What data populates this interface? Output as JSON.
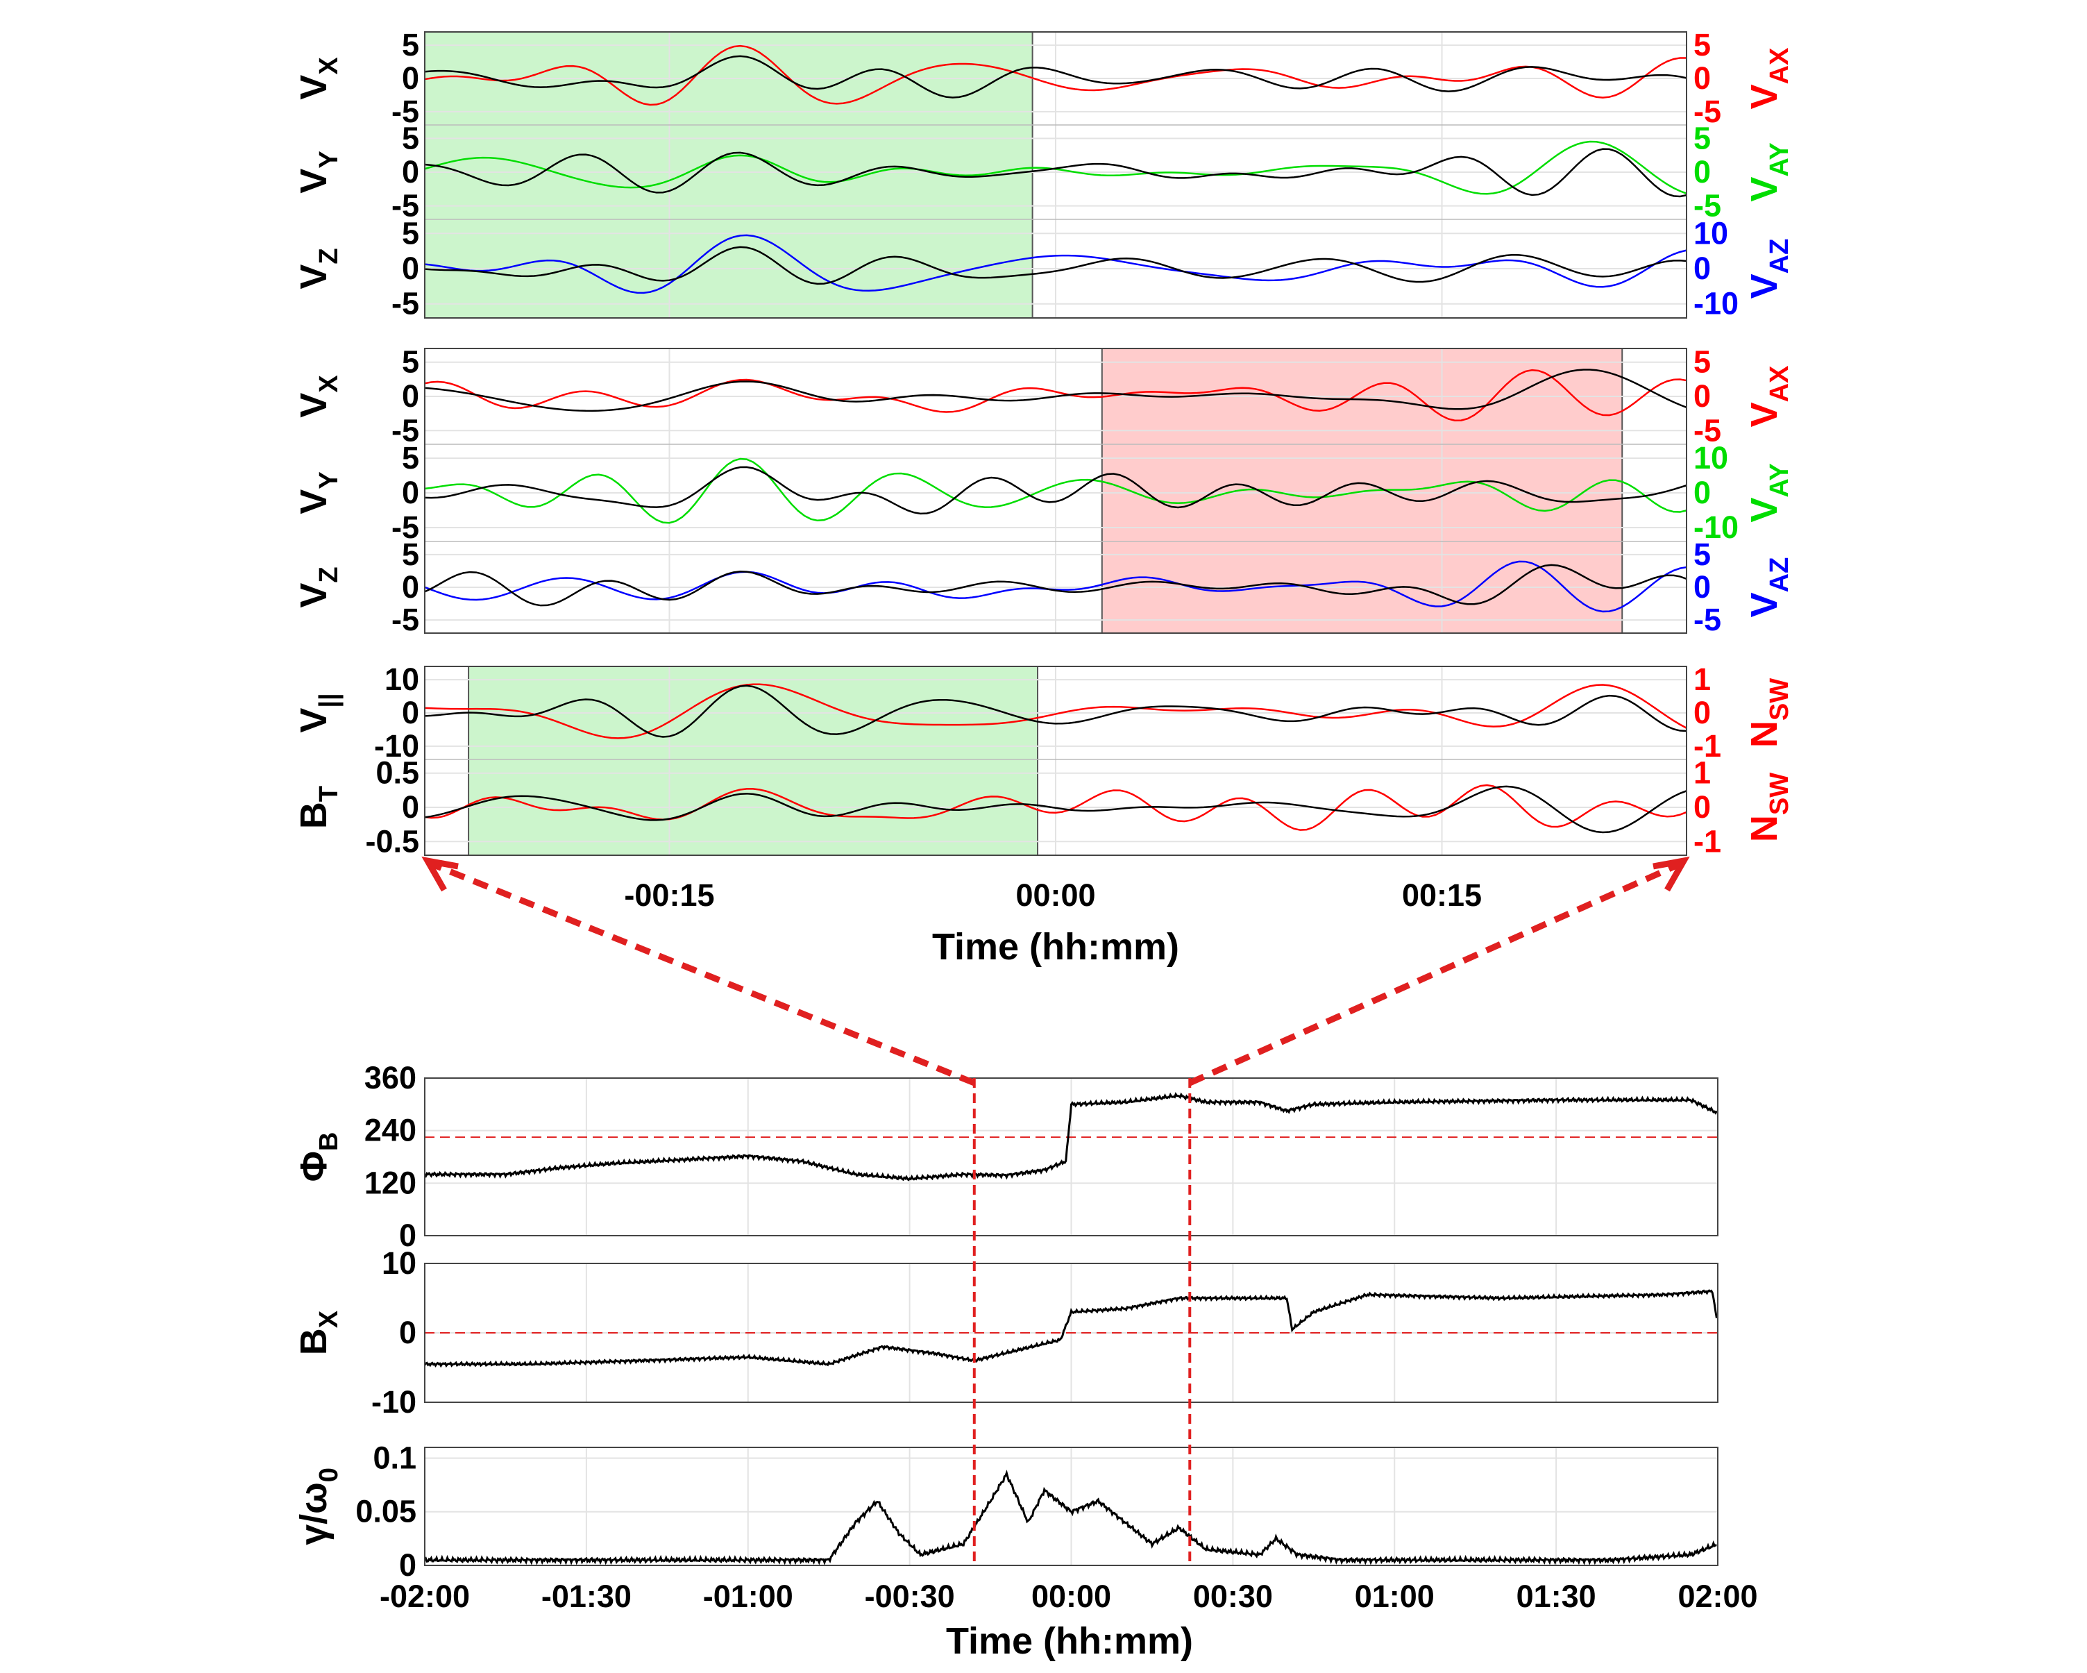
{
  "colors": {
    "black": "#000000",
    "red": "#ff0000",
    "green": "#00dd00",
    "blue": "#0000ff",
    "green_shade": "#ccf5cc",
    "red_shade": "#ffcccc",
    "grid": "#e3e3e3",
    "dash_red": "#e02020"
  },
  "chart_data": [
    {
      "type": "line",
      "panel": "velocity-set-1",
      "x_unit": "minutes",
      "xlim": [
        -24.5,
        24.5
      ],
      "highlight": {
        "from": -24.5,
        "to": -0.9,
        "color": "green"
      },
      "subplots": [
        {
          "left_label": "V",
          "left_sub": "X",
          "right_label": "V",
          "right_sub": "AX",
          "right_color": "red",
          "ylim": [
            -7,
            7
          ],
          "left_ticks": [
            "5",
            "0",
            "-5"
          ],
          "right_ticks": [
            "5",
            "0",
            "-5"
          ],
          "left_tick_values": [
            5,
            0,
            -5
          ],
          "right_tick_values": [
            5,
            0,
            -5
          ],
          "right_scale": 1
        },
        {
          "left_label": "V",
          "left_sub": "Y",
          "right_label": "V",
          "right_sub": "AY",
          "right_color": "green",
          "ylim": [
            -7,
            7
          ],
          "left_ticks": [
            "5",
            "0",
            "-5"
          ],
          "right_ticks": [
            "5",
            "0",
            "-5"
          ],
          "left_tick_values": [
            5,
            0,
            -5
          ],
          "right_tick_values": [
            5,
            0,
            -5
          ],
          "right_scale": 1
        },
        {
          "left_label": "V",
          "left_sub": "Z",
          "right_label": "V",
          "right_sub": "AZ",
          "right_color": "blue",
          "ylim": [
            -7,
            7
          ],
          "left_ticks": [
            "5",
            "0",
            "-5"
          ],
          "right_ticks": [
            "10",
            "0",
            "-10"
          ],
          "left_tick_values": [
            5,
            0,
            -5
          ],
          "right_tick_values": [
            5,
            0,
            -5
          ],
          "right_scale": 2
        }
      ]
    },
    {
      "type": "line",
      "panel": "velocity-set-2",
      "x_unit": "minutes",
      "xlim": [
        -24.5,
        24.5
      ],
      "highlight": {
        "from": 1.8,
        "to": 22.0,
        "color": "red"
      },
      "subplots": [
        {
          "left_label": "V",
          "left_sub": "X",
          "right_label": "V",
          "right_sub": "AX",
          "right_color": "red",
          "ylim": [
            -7,
            7
          ],
          "left_ticks": [
            "5",
            "0",
            "-5"
          ],
          "right_ticks": [
            "5",
            "0",
            "-5"
          ],
          "left_tick_values": [
            5,
            0,
            -5
          ],
          "right_tick_values": [
            5,
            0,
            -5
          ],
          "right_scale": 1
        },
        {
          "left_label": "V",
          "left_sub": "Y",
          "right_label": "V",
          "right_sub": "AY",
          "right_color": "green",
          "ylim": [
            -7,
            7
          ],
          "left_ticks": [
            "5",
            "0",
            "-5"
          ],
          "right_ticks": [
            "10",
            "0",
            "-10"
          ],
          "left_tick_values": [
            5,
            0,
            -5
          ],
          "right_tick_values": [
            5,
            0,
            -5
          ],
          "right_scale": 2
        },
        {
          "left_label": "V",
          "left_sub": "Z",
          "right_label": "V",
          "right_sub": "AZ",
          "right_color": "blue",
          "ylim": [
            -7,
            7
          ],
          "left_ticks": [
            "5",
            "0",
            "-5"
          ],
          "right_ticks": [
            "5",
            "0",
            "-5"
          ],
          "left_tick_values": [
            5,
            0,
            -5
          ],
          "right_tick_values": [
            5,
            0,
            -5
          ],
          "right_scale": 1
        }
      ]
    },
    {
      "type": "line",
      "panel": "compressive-set",
      "x_unit": "minutes",
      "xlim": [
        -24.5,
        24.5
      ],
      "highlight": {
        "from": -22.8,
        "to": -0.7,
        "color": "green"
      },
      "subplots": [
        {
          "left_label": "V",
          "left_sub": "||",
          "right_label": "N",
          "right_sub": "SW",
          "right_color": "red",
          "ylim": [
            -14,
            14
          ],
          "left_ticks": [
            "10",
            "0",
            "-10"
          ],
          "right_ticks": [
            "1",
            "0",
            "-1"
          ],
          "left_tick_values": [
            10,
            0,
            -10
          ],
          "right_tick_values": [
            10,
            0,
            -10
          ],
          "right_scale": 0.1
        },
        {
          "left_label": "B",
          "left_sub": "T",
          "right_label": "N",
          "right_sub": "SW",
          "right_color": "red",
          "ylim": [
            -0.7,
            0.7
          ],
          "left_ticks": [
            "0.5",
            "0",
            "-0.5"
          ],
          "right_ticks": [
            "1",
            "0",
            "-1"
          ],
          "left_tick_values": [
            0.5,
            0,
            -0.5
          ],
          "right_tick_values": [
            0.5,
            0,
            -0.5
          ],
          "right_scale": 2
        }
      ],
      "x_ticks": [
        "-00:15",
        "00:00",
        "00:15"
      ],
      "x_tick_values": [
        -15,
        0,
        15
      ],
      "xlabel": "Time (hh:mm)"
    },
    {
      "type": "line",
      "panel": "overview",
      "x_unit": "minutes",
      "xlim": [
        -120,
        120
      ],
      "markers": [
        -18,
        22
      ],
      "subplots": [
        {
          "label": "Φ",
          "sub": "B",
          "ylim": [
            0,
            360
          ],
          "ticks": [
            "360",
            "240",
            "120",
            "0"
          ],
          "tick_values": [
            360,
            240,
            120,
            0
          ],
          "ref_line": 225,
          "trace": [
            [
              -120,
              140
            ],
            [
              -105,
              140
            ],
            [
              -95,
              155
            ],
            [
              -85,
              165
            ],
            [
              -70,
              175
            ],
            [
              -60,
              182
            ],
            [
              -50,
              170
            ],
            [
              -40,
              140
            ],
            [
              -30,
              130
            ],
            [
              -20,
              140
            ],
            [
              -12,
              138
            ],
            [
              -5,
              150
            ],
            [
              -1,
              170
            ],
            [
              0,
              300
            ],
            [
              10,
              305
            ],
            [
              20,
              320
            ],
            [
              25,
              305
            ],
            [
              35,
              305
            ],
            [
              40,
              285
            ],
            [
              45,
              300
            ],
            [
              60,
              305
            ],
            [
              90,
              310
            ],
            [
              115,
              310
            ],
            [
              120,
              280
            ]
          ]
        },
        {
          "label": "B",
          "sub": "X",
          "ylim": [
            -10,
            10
          ],
          "ticks": [
            "10",
            "0",
            "-10"
          ],
          "tick_values": [
            10,
            0,
            -10
          ],
          "ref_line": 0,
          "trace": [
            [
              -120,
              -4.5
            ],
            [
              -100,
              -4.5
            ],
            [
              -80,
              -4
            ],
            [
              -60,
              -3.5
            ],
            [
              -45,
              -4.5
            ],
            [
              -35,
              -2
            ],
            [
              -25,
              -3
            ],
            [
              -18,
              -4
            ],
            [
              -10,
              -2.5
            ],
            [
              -2,
              -1
            ],
            [
              0,
              3
            ],
            [
              10,
              3.5
            ],
            [
              20,
              5
            ],
            [
              30,
              5
            ],
            [
              40,
              5
            ],
            [
              41,
              0.5
            ],
            [
              45,
              3
            ],
            [
              55,
              5.5
            ],
            [
              80,
              5
            ],
            [
              110,
              5.5
            ],
            [
              119,
              6
            ],
            [
              120,
              1
            ]
          ]
        },
        {
          "label": "γ/ω",
          "sub": "0",
          "ylim": [
            0,
            0.11
          ],
          "ticks": [
            "0.1",
            "0.05",
            "0"
          ],
          "tick_values": [
            0.1,
            0.05,
            0
          ],
          "trace": [
            [
              -120,
              0.005
            ],
            [
              -45,
              0.005
            ],
            [
              -40,
              0.04
            ],
            [
              -36,
              0.06
            ],
            [
              -32,
              0.03
            ],
            [
              -28,
              0.01
            ],
            [
              -20,
              0.02
            ],
            [
              -15,
              0.06
            ],
            [
              -12,
              0.085
            ],
            [
              -8,
              0.04
            ],
            [
              -5,
              0.07
            ],
            [
              0,
              0.05
            ],
            [
              5,
              0.06
            ],
            [
              10,
              0.04
            ],
            [
              15,
              0.02
            ],
            [
              20,
              0.035
            ],
            [
              25,
              0.015
            ],
            [
              35,
              0.01
            ],
            [
              38,
              0.025
            ],
            [
              42,
              0.01
            ],
            [
              50,
              0.005
            ],
            [
              100,
              0.005
            ],
            [
              115,
              0.01
            ],
            [
              120,
              0.02
            ]
          ]
        }
      ],
      "x_ticks": [
        "-02:00",
        "-01:30",
        "-01:00",
        "-00:30",
        "00:00",
        "00:30",
        "01:00",
        "01:30",
        "02:00"
      ],
      "x_tick_values": [
        -120,
        -90,
        -60,
        -30,
        0,
        30,
        60,
        90,
        120
      ],
      "xlabel": "Time (hh:mm)"
    }
  ]
}
